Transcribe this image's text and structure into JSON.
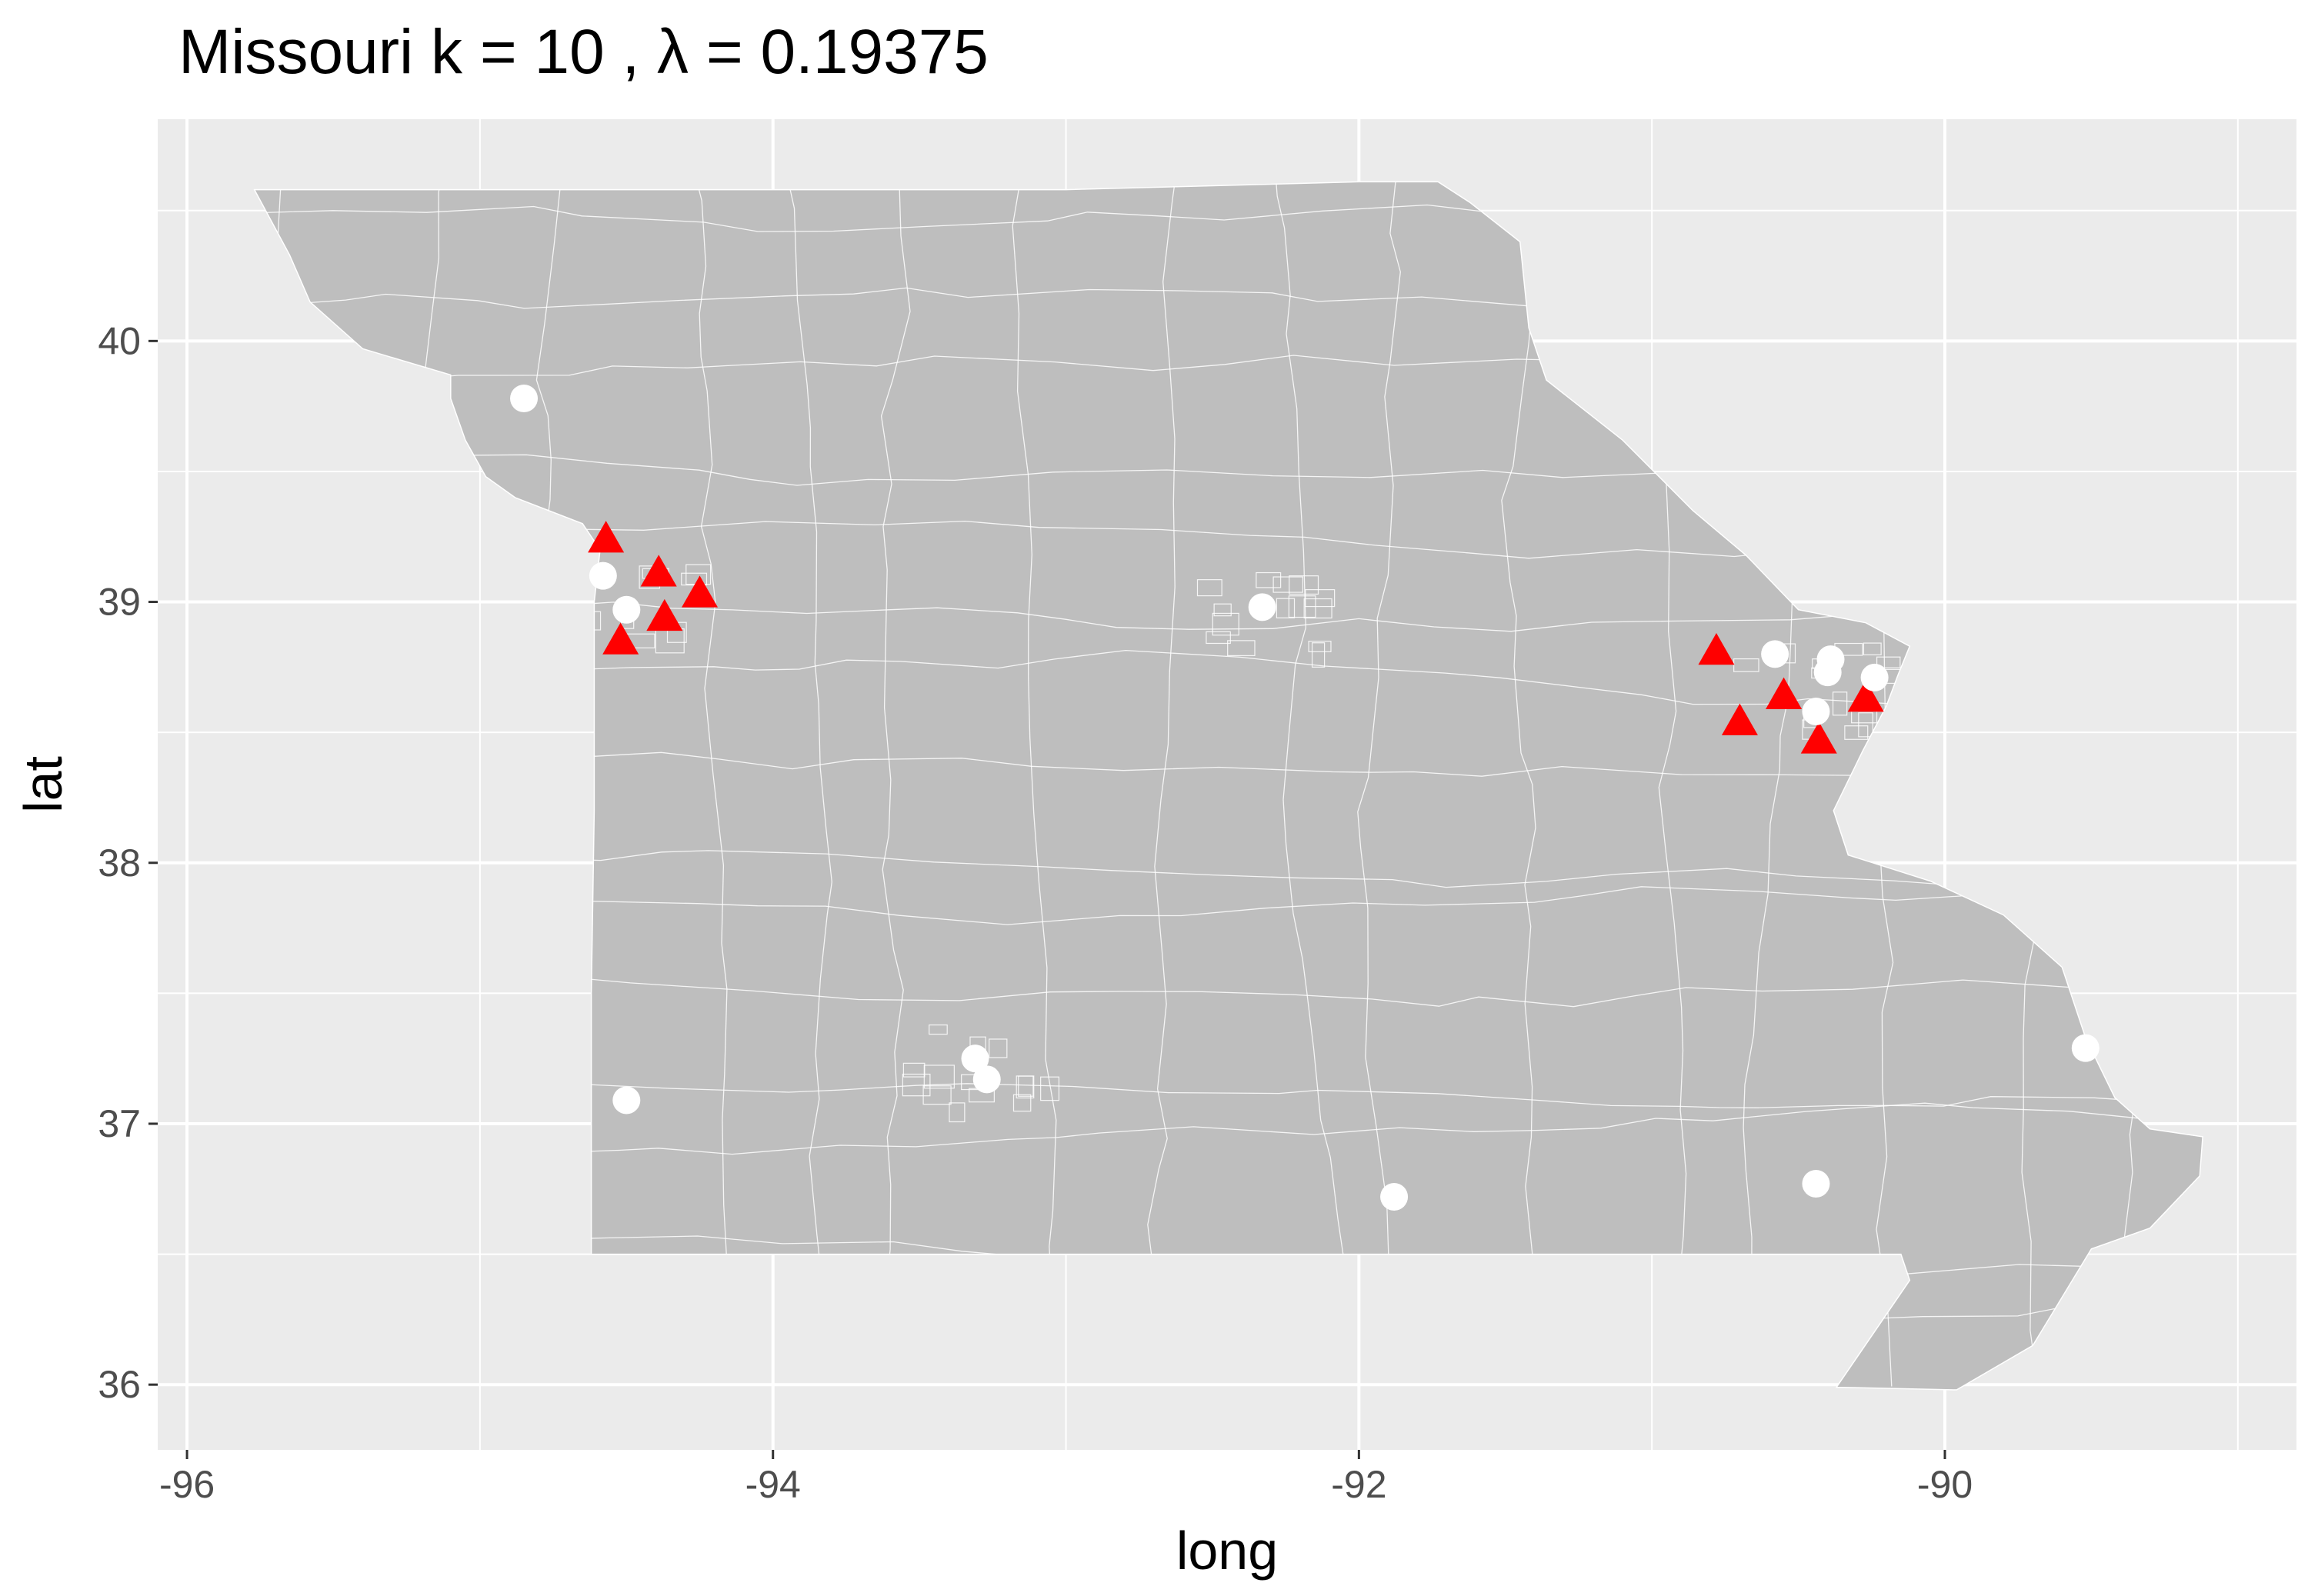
{
  "title": "Missouri  k =  10 ,  λ  =  0.19375",
  "chart_data": {
    "type": "scatter",
    "title": "Missouri  k =  10 ,  λ  =  0.19375",
    "xlabel": "long",
    "ylabel": "lat",
    "xlim": [
      -96.1,
      -88.8
    ],
    "ylim": [
      35.75,
      40.85
    ],
    "x_ticks": [
      -96,
      -94,
      -92,
      -90
    ],
    "y_ticks": [
      36,
      37,
      38,
      39,
      40
    ],
    "x_tick_labels": [
      "-96",
      "-94",
      "-92",
      "-90"
    ],
    "y_tick_labels": [
      "36",
      "37",
      "38",
      "39",
      "40"
    ],
    "grid": true,
    "panel_background": "#ebebeb",
    "land_color": "#bebebe",
    "border_color": "#ffffff",
    "series": [
      {
        "marker": "triangle",
        "color": "#ff0000",
        "points": [
          {
            "x": -94.57,
            "y": 39.24
          },
          {
            "x": -94.39,
            "y": 39.11
          },
          {
            "x": -94.25,
            "y": 39.03
          },
          {
            "x": -94.37,
            "y": 38.94
          },
          {
            "x": -94.52,
            "y": 38.85
          },
          {
            "x": -90.78,
            "y": 38.81
          },
          {
            "x": -90.55,
            "y": 38.64
          },
          {
            "x": -90.27,
            "y": 38.63
          },
          {
            "x": -90.7,
            "y": 38.54
          },
          {
            "x": -90.43,
            "y": 38.47
          }
        ]
      },
      {
        "marker": "circle",
        "color": "#ffffff",
        "points": [
          {
            "x": -94.85,
            "y": 39.78
          },
          {
            "x": -94.58,
            "y": 39.1
          },
          {
            "x": -94.5,
            "y": 38.97
          },
          {
            "x": -92.33,
            "y": 38.98
          },
          {
            "x": -90.58,
            "y": 38.8
          },
          {
            "x": -90.39,
            "y": 38.78
          },
          {
            "x": -90.4,
            "y": 38.73
          },
          {
            "x": -90.24,
            "y": 38.71
          },
          {
            "x": -90.44,
            "y": 38.58
          },
          {
            "x": -93.31,
            "y": 37.25
          },
          {
            "x": -93.27,
            "y": 37.17
          },
          {
            "x": -94.5,
            "y": 37.09
          },
          {
            "x": -89.52,
            "y": 37.29
          },
          {
            "x": -91.88,
            "y": 36.72
          },
          {
            "x": -90.44,
            "y": 36.77
          }
        ]
      }
    ]
  }
}
